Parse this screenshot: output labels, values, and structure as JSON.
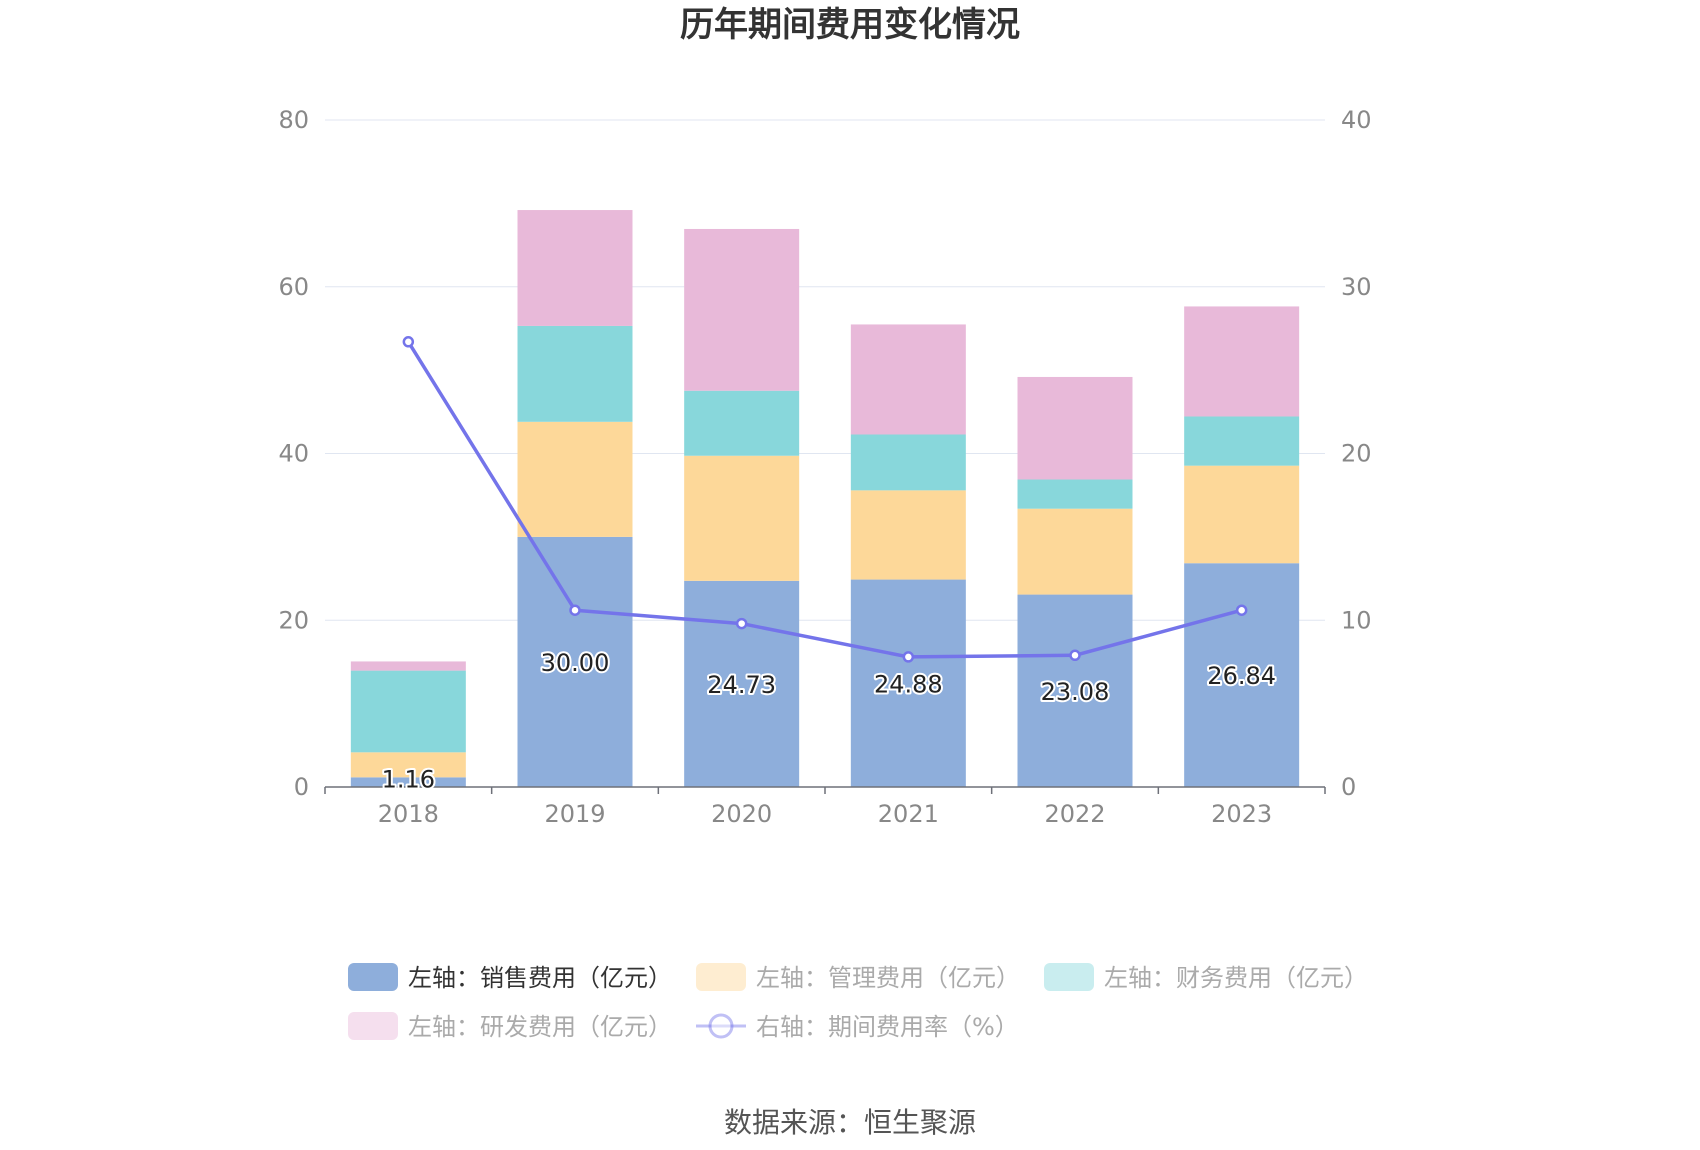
{
  "chart_data": {
    "type": "bar",
    "title": "历年期间费用变化情况",
    "categories": [
      "2018",
      "2019",
      "2020",
      "2021",
      "2022",
      "2023"
    ],
    "stacked": true,
    "series": [
      {
        "name": "左轴：销售费用（亿元）",
        "axis": "left",
        "color": "#8eaedb",
        "values": [
          1.16,
          30.0,
          24.73,
          24.88,
          23.08,
          26.84
        ],
        "labels": [
          "1.16",
          "30.00",
          "24.73",
          "24.88",
          "23.08",
          "26.84"
        ]
      },
      {
        "name": "左轴：管理费用（亿元）",
        "axis": "left",
        "color": "#fdd899",
        "values": [
          3.0,
          13.8,
          15.0,
          10.7,
          10.3,
          11.7
        ]
      },
      {
        "name": "左轴：财务费用（亿元）",
        "axis": "left",
        "color": "#88d7db",
        "values": [
          9.8,
          11.5,
          7.8,
          6.7,
          3.5,
          5.9
        ]
      },
      {
        "name": "左轴：研发费用（亿元）",
        "axis": "left",
        "color": "#e8b9d9",
        "values": [
          1.1,
          13.9,
          19.4,
          13.2,
          12.3,
          13.2
        ]
      },
      {
        "name": "右轴：期间费用率（%）",
        "axis": "right",
        "type": "line",
        "color": "#7474ea",
        "values": [
          26.7,
          10.6,
          9.8,
          7.8,
          7.9,
          10.6
        ]
      }
    ],
    "y_left": {
      "min": 0,
      "max": 80,
      "ticks": [
        "0",
        "20",
        "40",
        "60",
        "80"
      ]
    },
    "y_right": {
      "min": 0,
      "max": 40,
      "ticks": [
        "0",
        "10",
        "20",
        "30",
        "40"
      ]
    },
    "grid": true,
    "legend": "bottom",
    "source": "数据来源：恒生聚源"
  }
}
